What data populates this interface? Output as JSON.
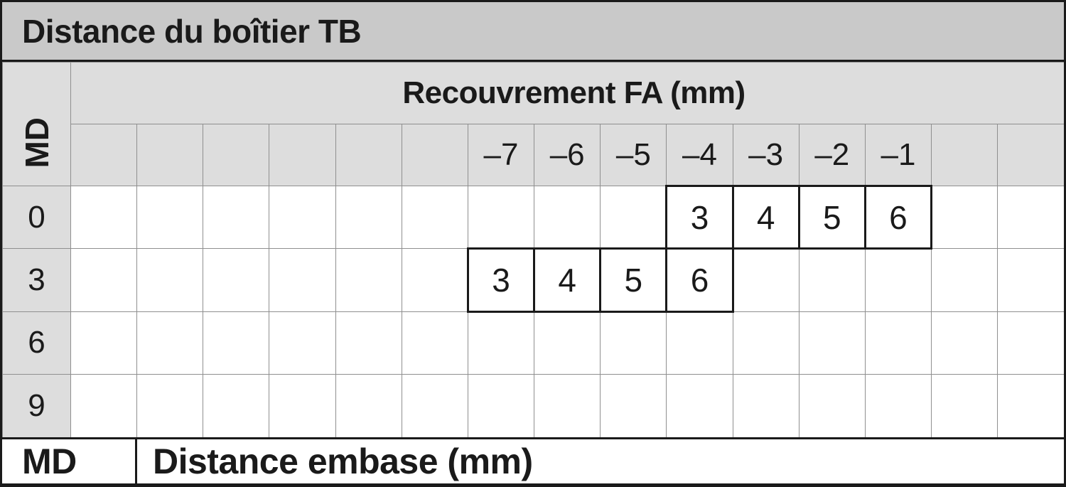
{
  "title": "Distance du boîtier TB",
  "table": {
    "axis_label": "MD",
    "group_header": "Recouvrement FA (mm)",
    "columns": [
      "",
      "",
      "",
      "",
      "",
      "",
      "–7",
      "–6",
      "–5",
      "–4",
      "–3",
      "–2",
      "–1",
      "",
      ""
    ],
    "rows": [
      {
        "label": "0",
        "cells": [
          "",
          "",
          "",
          "",
          "",
          "",
          "",
          "",
          "",
          "3",
          "4",
          "5",
          "6",
          "",
          ""
        ]
      },
      {
        "label": "3",
        "cells": [
          "",
          "",
          "",
          "",
          "",
          "",
          "3",
          "4",
          "5",
          "6",
          "",
          "",
          "",
          "",
          ""
        ]
      },
      {
        "label": "6",
        "cells": [
          "",
          "",
          "",
          "",
          "",
          "",
          "",
          "",
          "",
          "",
          "",
          "",
          "",
          "",
          ""
        ]
      },
      {
        "label": "9",
        "cells": [
          "",
          "",
          "",
          "",
          "",
          "",
          "",
          "",
          "",
          "",
          "",
          "",
          "",
          "",
          ""
        ]
      }
    ]
  },
  "legend": {
    "abbr": "MD",
    "description": "Distance embase (mm)"
  },
  "colors": {
    "title_bg": "#c9c9c9",
    "header_bg": "#dddddd",
    "body_bg": "#ffffff",
    "grid_line": "#8f8f8f",
    "heavy_line": "#1a1a1a",
    "text": "#1a1a1a"
  }
}
